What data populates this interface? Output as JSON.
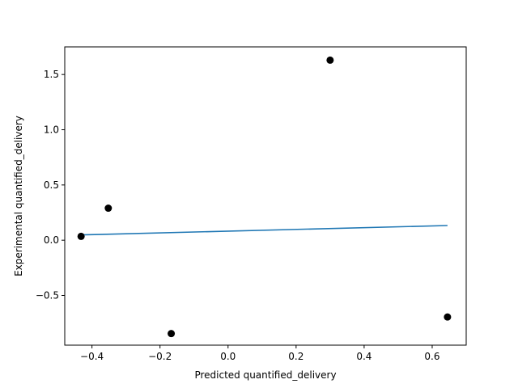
{
  "chart_data": {
    "type": "scatter",
    "title": "",
    "xlabel": "Predicted quantified_delivery",
    "ylabel": "Experimental quantified_delivery",
    "xlim": [
      -0.48,
      0.7
    ],
    "ylim": [
      -0.95,
      1.75
    ],
    "x_ticks": [
      -0.4,
      -0.2,
      0.0,
      0.2,
      0.4,
      0.6
    ],
    "x_tick_labels": [
      "−0.4",
      "−0.2",
      "0.0",
      "0.2",
      "0.4",
      "0.6"
    ],
    "y_ticks": [
      -0.5,
      0.0,
      0.5,
      1.0,
      1.5
    ],
    "y_tick_labels": [
      "−0.5",
      "0.0",
      "0.5",
      "1.0",
      "1.5"
    ],
    "grid": false,
    "series": [
      {
        "kind": "scatter",
        "color": "#000000",
        "points": [
          {
            "x": -0.432,
            "y": 0.035
          },
          {
            "x": -0.352,
            "y": 0.29
          },
          {
            "x": -0.167,
            "y": -0.845
          },
          {
            "x": 0.3,
            "y": 1.63
          },
          {
            "x": 0.645,
            "y": -0.695
          }
        ]
      },
      {
        "kind": "line",
        "color": "#1f77b4",
        "points": [
          {
            "x": -0.432,
            "y": 0.048
          },
          {
            "x": 0.645,
            "y": 0.133
          }
        ]
      }
    ]
  }
}
